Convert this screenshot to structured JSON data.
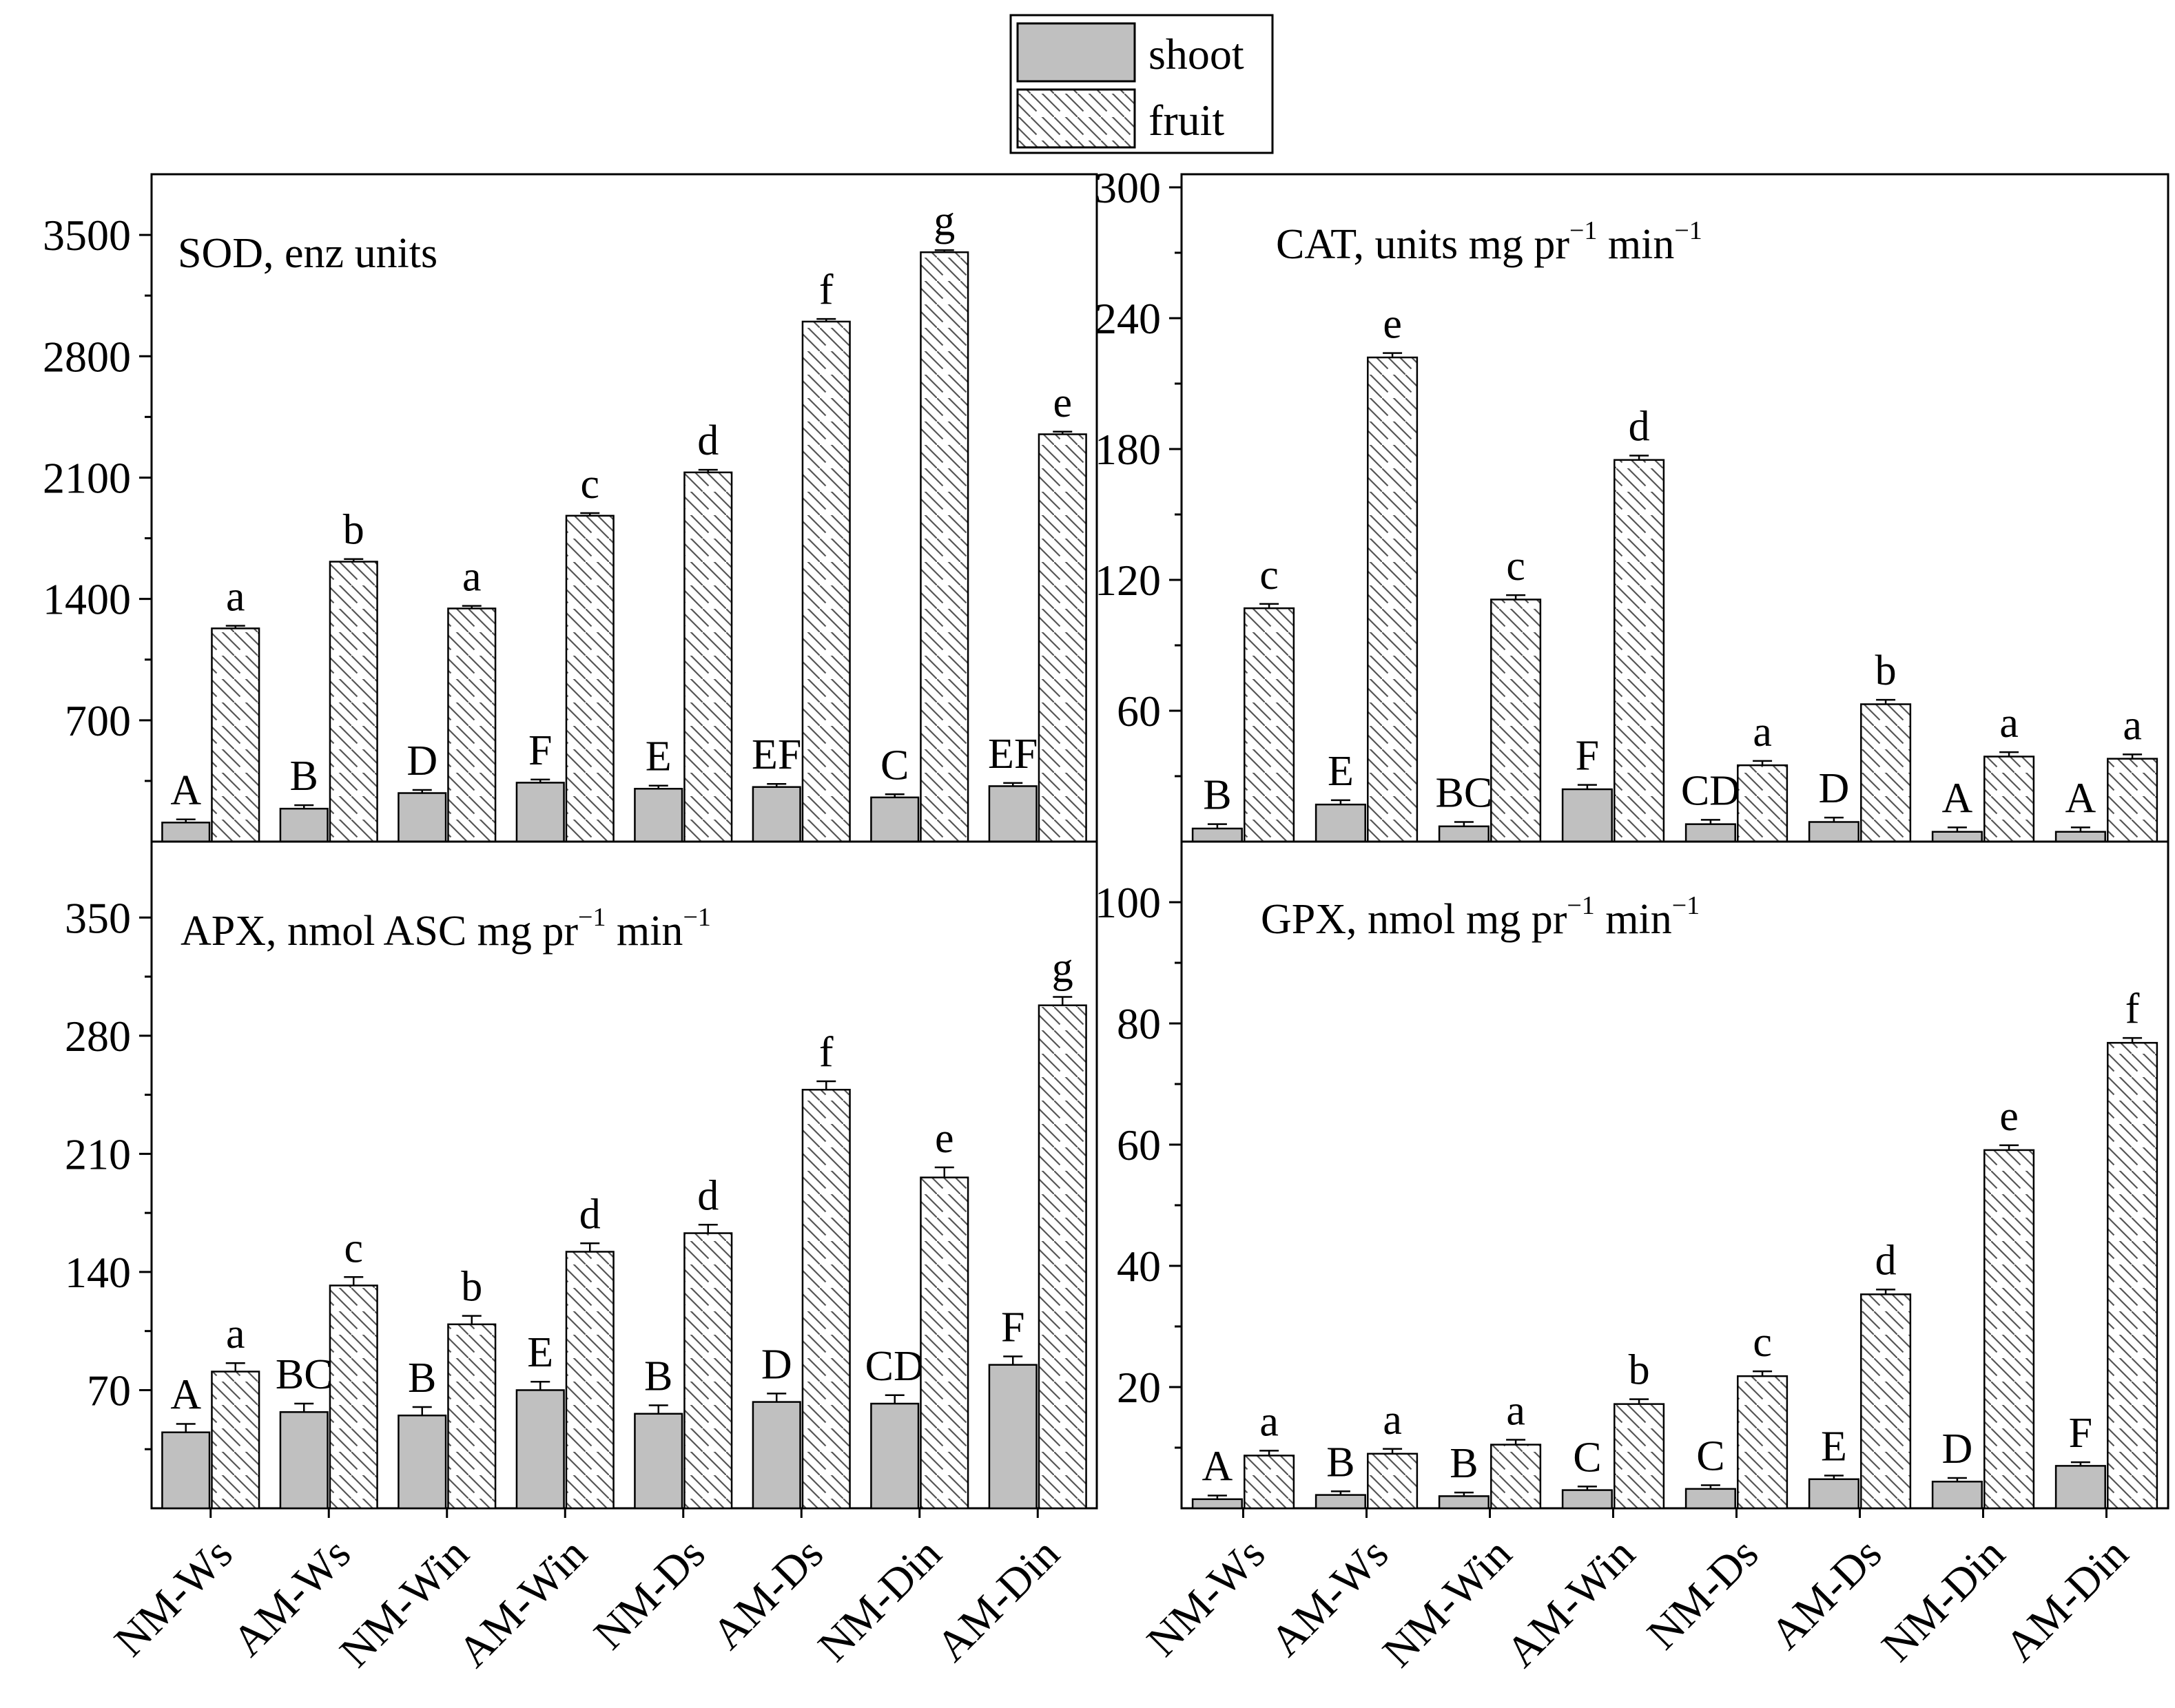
{
  "legend": {
    "items": [
      {
        "label": "shoot",
        "style": "solid",
        "color": "#c0c0c0"
      },
      {
        "label": "fruit",
        "style": "hatched",
        "color": "#ffffff"
      }
    ]
  },
  "categories": [
    "NM-Ws",
    "AM-Ws",
    "NM-Win",
    "AM-Win",
    "NM-Ds",
    "AM-Ds",
    "NM-Din",
    "AM-Din"
  ],
  "chart_data": [
    {
      "type": "bar",
      "id": "sod",
      "title": {
        "main": "SOD, enz units",
        "sup1": "",
        "mid": "",
        "sup2": ""
      },
      "ylim": [
        0,
        3850
      ],
      "yticks": [
        700,
        1400,
        2100,
        2800,
        3500
      ],
      "series": [
        {
          "name": "shoot",
          "values": [
            110,
            190,
            280,
            340,
            305,
            315,
            255,
            320
          ],
          "errors": [
            18,
            20,
            18,
            18,
            18,
            18,
            18,
            18
          ],
          "labels": [
            "A",
            "B",
            "D",
            "F",
            "E",
            "EF",
            "C",
            "EF"
          ]
        },
        {
          "name": "fruit",
          "values": [
            1230,
            1615,
            1345,
            1880,
            2130,
            3000,
            3400,
            2350
          ],
          "errors": [
            15,
            15,
            15,
            15,
            15,
            15,
            12,
            15
          ],
          "labels": [
            "a",
            "b",
            "a",
            "c",
            "d",
            "f",
            "g",
            "e"
          ]
        }
      ]
    },
    {
      "type": "bar",
      "id": "cat",
      "title": {
        "main": "CAT, units mg pr",
        "sup1": "−1",
        "mid": " min",
        "sup2": "−1"
      },
      "ylim": [
        0,
        306
      ],
      "yticks": [
        60,
        120,
        180,
        240,
        300
      ],
      "series": [
        {
          "name": "shoot",
          "values": [
            6,
            17,
            7,
            24,
            8,
            9,
            4.5,
            4.5
          ],
          "errors": [
            2,
            2,
            2,
            2,
            2,
            2,
            2,
            2
          ],
          "labels": [
            "B",
            "E",
            "BC",
            "F",
            "CD",
            "D",
            "A",
            "A"
          ]
        },
        {
          "name": "fruit",
          "values": [
            107,
            222,
            111,
            175,
            35,
            63,
            39,
            38
          ],
          "errors": [
            2,
            2,
            2,
            2,
            2,
            2,
            2,
            2
          ],
          "labels": [
            "c",
            "e",
            "c",
            "d",
            "a",
            "b",
            "a",
            "a"
          ]
        }
      ]
    },
    {
      "type": "bar",
      "id": "apx",
      "title": {
        "main": "APX, nmol ASC mg pr",
        "sup1": "−1",
        "mid": " min",
        "sup2": "−1"
      },
      "ylim": [
        0,
        395
      ],
      "yticks": [
        70,
        140,
        210,
        280,
        350
      ],
      "series": [
        {
          "name": "shoot",
          "values": [
            45,
            57,
            55,
            70,
            56,
            63,
            62,
            85
          ],
          "errors": [
            5,
            5,
            5,
            5,
            5,
            5,
            5,
            5
          ],
          "labels": [
            "A",
            "BC",
            "B",
            "E",
            "B",
            "D",
            "CD",
            "F"
          ]
        },
        {
          "name": "fruit",
          "values": [
            81,
            132,
            109,
            152,
            163,
            248,
            196,
            298
          ],
          "errors": [
            5,
            5,
            5,
            5,
            5,
            5,
            6,
            5
          ],
          "labels": [
            "a",
            "c",
            "b",
            "d",
            "d",
            "f",
            "e",
            "g"
          ]
        }
      ]
    },
    {
      "type": "bar",
      "id": "gpx",
      "title": {
        "main": "GPX, nmol mg pr",
        "sup1": "−1",
        "mid": " min",
        "sup2": "−1"
      },
      "ylim": [
        0,
        110
      ],
      "yticks": [
        20,
        40,
        60,
        80,
        100
      ],
      "series": [
        {
          "name": "shoot",
          "values": [
            1.5,
            2.2,
            2.0,
            3.0,
            3.2,
            4.8,
            4.4,
            7.0
          ],
          "errors": [
            0.6,
            0.6,
            0.6,
            0.6,
            0.6,
            0.6,
            0.6,
            0.6
          ],
          "labels": [
            "A",
            "B",
            "B",
            "C",
            "C",
            "E",
            "D",
            "F"
          ]
        },
        {
          "name": "fruit",
          "values": [
            8.7,
            9.0,
            10.5,
            17.2,
            21.8,
            35.3,
            59.1,
            76.8
          ],
          "errors": [
            0.8,
            0.8,
            0.8,
            0.8,
            0.8,
            0.8,
            0.8,
            0.8
          ],
          "labels": [
            "a",
            "a",
            "a",
            "b",
            "c",
            "d",
            "e",
            "f"
          ]
        }
      ]
    }
  ]
}
